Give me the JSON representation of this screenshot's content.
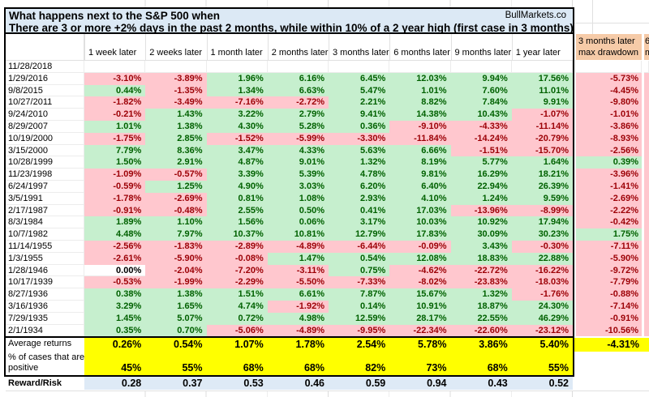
{
  "title": {
    "line1": "What happens next to the S&P 500 when",
    "line2": "There are 3 or more +2% days in the past 2 months, while within 10% of a 2 year high (first case in 3 months)",
    "brand": "BullMarkets.co"
  },
  "table": {
    "columns": [
      "1 week later",
      "2 weeks later",
      "1 month later",
      "2 months later",
      "3 months later",
      "6 months later",
      "9 months later",
      "1 year later"
    ],
    "drawdown_header": [
      "3 months later",
      "max drawdown"
    ],
    "next_column_fragment": [
      "6",
      "m"
    ],
    "rows": [
      {
        "date": "11/28/2018",
        "values": [
          "",
          "",
          "",
          "",
          "",
          "",
          "",
          ""
        ],
        "drawdown": ""
      },
      {
        "date": "1/29/2016",
        "values": [
          "-3.10%",
          "-3.89%",
          "1.96%",
          "6.16%",
          "6.45%",
          "12.03%",
          "9.94%",
          "17.56%"
        ],
        "drawdown": "-5.73%"
      },
      {
        "date": "9/8/2015",
        "values": [
          "0.44%",
          "-1.35%",
          "1.34%",
          "6.63%",
          "5.47%",
          "1.01%",
          "7.60%",
          "11.01%"
        ],
        "drawdown": "-4.45%"
      },
      {
        "date": "10/27/2011",
        "values": [
          "-1.82%",
          "-3.49%",
          "-7.16%",
          "-2.72%",
          "2.21%",
          "8.82%",
          "7.84%",
          "9.91%"
        ],
        "drawdown": "-9.80%"
      },
      {
        "date": "9/24/2010",
        "values": [
          "-0.21%",
          "1.43%",
          "3.22%",
          "2.79%",
          "9.41%",
          "14.38%",
          "10.43%",
          "-1.07%"
        ],
        "drawdown": "-1.01%"
      },
      {
        "date": "8/29/2007",
        "values": [
          "1.01%",
          "1.38%",
          "4.30%",
          "5.28%",
          "0.36%",
          "-9.10%",
          "-4.33%",
          "-11.14%"
        ],
        "drawdown": "-3.86%"
      },
      {
        "date": "10/19/2000",
        "values": [
          "-1.75%",
          "2.85%",
          "-1.52%",
          "-5.99%",
          "-3.30%",
          "-11.84%",
          "-14.24%",
          "-20.79%"
        ],
        "drawdown": "-8.93%"
      },
      {
        "date": "3/15/2000",
        "values": [
          "7.79%",
          "8.36%",
          "3.47%",
          "4.33%",
          "5.63%",
          "6.66%",
          "-1.51%",
          "-15.70%"
        ],
        "drawdown": "-2.56%"
      },
      {
        "date": "10/28/1999",
        "values": [
          "1.50%",
          "2.91%",
          "4.87%",
          "9.01%",
          "1.32%",
          "8.19%",
          "5.77%",
          "1.64%"
        ],
        "drawdown": "0.39%"
      },
      {
        "date": "11/23/1998",
        "values": [
          "-1.09%",
          "-0.57%",
          "3.39%",
          "5.39%",
          "4.78%",
          "9.81%",
          "16.29%",
          "18.21%"
        ],
        "drawdown": "-3.96%"
      },
      {
        "date": "6/24/1997",
        "values": [
          "-0.59%",
          "1.25%",
          "4.90%",
          "3.03%",
          "6.20%",
          "6.40%",
          "22.94%",
          "26.39%"
        ],
        "drawdown": "-1.41%"
      },
      {
        "date": "3/5/1991",
        "values": [
          "-1.78%",
          "-2.69%",
          "0.81%",
          "1.08%",
          "2.93%",
          "4.10%",
          "1.24%",
          "9.59%"
        ],
        "drawdown": "-2.69%"
      },
      {
        "date": "2/17/1987",
        "values": [
          "-0.91%",
          "-0.48%",
          "2.55%",
          "0.50%",
          "0.41%",
          "17.03%",
          "-13.96%",
          "-8.99%"
        ],
        "drawdown": "-2.22%"
      },
      {
        "date": "8/3/1984",
        "values": [
          "1.89%",
          "1.10%",
          "1.56%",
          "0.06%",
          "3.17%",
          "10.03%",
          "10.92%",
          "17.94%"
        ],
        "drawdown": "-0.42%"
      },
      {
        "date": "10/7/1982",
        "values": [
          "4.48%",
          "7.97%",
          "10.37%",
          "10.81%",
          "12.79%",
          "17.83%",
          "30.09%",
          "30.23%"
        ],
        "drawdown": "1.75%"
      },
      {
        "date": "11/14/1955",
        "values": [
          "-2.56%",
          "-1.83%",
          "-2.89%",
          "-4.89%",
          "-6.44%",
          "-0.09%",
          "3.43%",
          "-0.30%"
        ],
        "drawdown": "-7.11%"
      },
      {
        "date": "1/3/1955",
        "values": [
          "-2.61%",
          "-5.90%",
          "-0.08%",
          "1.47%",
          "0.54%",
          "12.08%",
          "18.83%",
          "22.88%"
        ],
        "drawdown": "-5.90%"
      },
      {
        "date": "1/28/1946",
        "values": [
          "0.00%",
          "-2.04%",
          "-7.20%",
          "-3.11%",
          "0.75%",
          "-4.62%",
          "-22.72%",
          "-16.22%"
        ],
        "drawdown": "-9.72%"
      },
      {
        "date": "10/17/1939",
        "values": [
          "-0.53%",
          "-1.99%",
          "-2.29%",
          "-5.50%",
          "-7.33%",
          "-8.02%",
          "-23.83%",
          "-18.03%"
        ],
        "drawdown": "-7.79%"
      },
      {
        "date": "8/27/1936",
        "values": [
          "0.38%",
          "1.38%",
          "1.51%",
          "6.61%",
          "7.87%",
          "15.67%",
          "1.32%",
          "-1.76%"
        ],
        "drawdown": "-0.88%"
      },
      {
        "date": "3/16/1936",
        "values": [
          "3.29%",
          "1.65%",
          "4.74%",
          "-1.92%",
          "0.14%",
          "10.91%",
          "18.87%",
          "24.30%"
        ],
        "drawdown": "-7.14%"
      },
      {
        "date": "7/29/1935",
        "values": [
          "1.45%",
          "5.07%",
          "0.72%",
          "4.98%",
          "12.59%",
          "28.17%",
          "22.55%",
          "46.29%"
        ],
        "drawdown": "-0.91%"
      },
      {
        "date": "2/1/1934",
        "values": [
          "0.35%",
          "0.70%",
          "-5.06%",
          "-4.89%",
          "-9.95%",
          "-22.34%",
          "-22.60%",
          "-23.12%"
        ],
        "drawdown": "-10.56%"
      }
    ],
    "summary": {
      "average": {
        "label": "Average returns",
        "values": [
          "0.26%",
          "0.54%",
          "1.07%",
          "1.78%",
          "2.54%",
          "5.78%",
          "3.86%",
          "5.40%"
        ],
        "drawdown": "-4.31%"
      },
      "percent_positive": {
        "label_lines": [
          "% of cases that are",
          "positive"
        ],
        "values": [
          "45%",
          "55%",
          "68%",
          "68%",
          "82%",
          "73%",
          "68%",
          "55%"
        ]
      },
      "reward_risk": {
        "label": "Reward/Risk",
        "values": [
          "0.28",
          "0.37",
          "0.53",
          "0.46",
          "0.59",
          "0.94",
          "0.43",
          "0.52"
        ]
      }
    }
  },
  "colors": {
    "positive_bg": "#C6EFCE",
    "positive_text": "#006100",
    "negative_bg": "#FFC7CE",
    "negative_text": "#9C0006",
    "highlight_yellow": "#FFFF00",
    "drawdown_header_fill": "#F6CBA8",
    "title_fill": "#DCE9F5",
    "reward_row_fill": "#DEEAF6",
    "gridline": "#DCDCDC"
  }
}
